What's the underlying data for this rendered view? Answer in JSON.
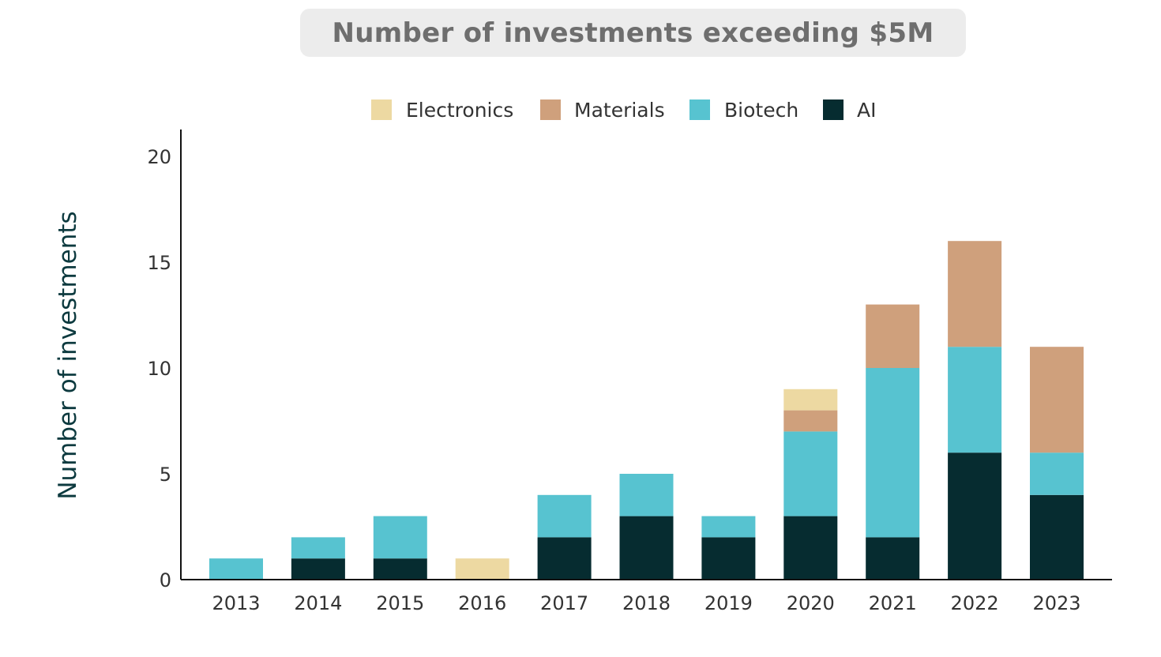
{
  "chart_data": {
    "type": "bar",
    "stacked": true,
    "title": "Number of investments exceeding $5M",
    "xlabel": "",
    "ylabel": "Number of investments",
    "ylim": [
      0,
      21
    ],
    "yticks": [
      0,
      5,
      10,
      15,
      20
    ],
    "categories": [
      "2013",
      "2014",
      "2015",
      "2016",
      "2017",
      "2018",
      "2019",
      "2020",
      "2021",
      "2022",
      "2023"
    ],
    "legend_position": "top-center",
    "legend_order": [
      "Electronics",
      "Materials",
      "Biotech",
      "AI"
    ],
    "series": [
      {
        "name": "AI",
        "color": "#062c30",
        "values": [
          0,
          1,
          1,
          0,
          2,
          3,
          2,
          3,
          2,
          6,
          4
        ]
      },
      {
        "name": "Biotech",
        "color": "#57c3d0",
        "values": [
          1,
          1,
          2,
          0,
          2,
          2,
          1,
          4,
          8,
          5,
          2
        ]
      },
      {
        "name": "Materials",
        "color": "#cfa07c",
        "values": [
          0,
          0,
          0,
          0,
          0,
          0,
          0,
          1,
          3,
          5,
          5
        ]
      },
      {
        "name": "Electronics",
        "color": "#edd9a2",
        "values": [
          0,
          0,
          0,
          1,
          0,
          0,
          0,
          1,
          0,
          0,
          0
        ]
      }
    ]
  }
}
